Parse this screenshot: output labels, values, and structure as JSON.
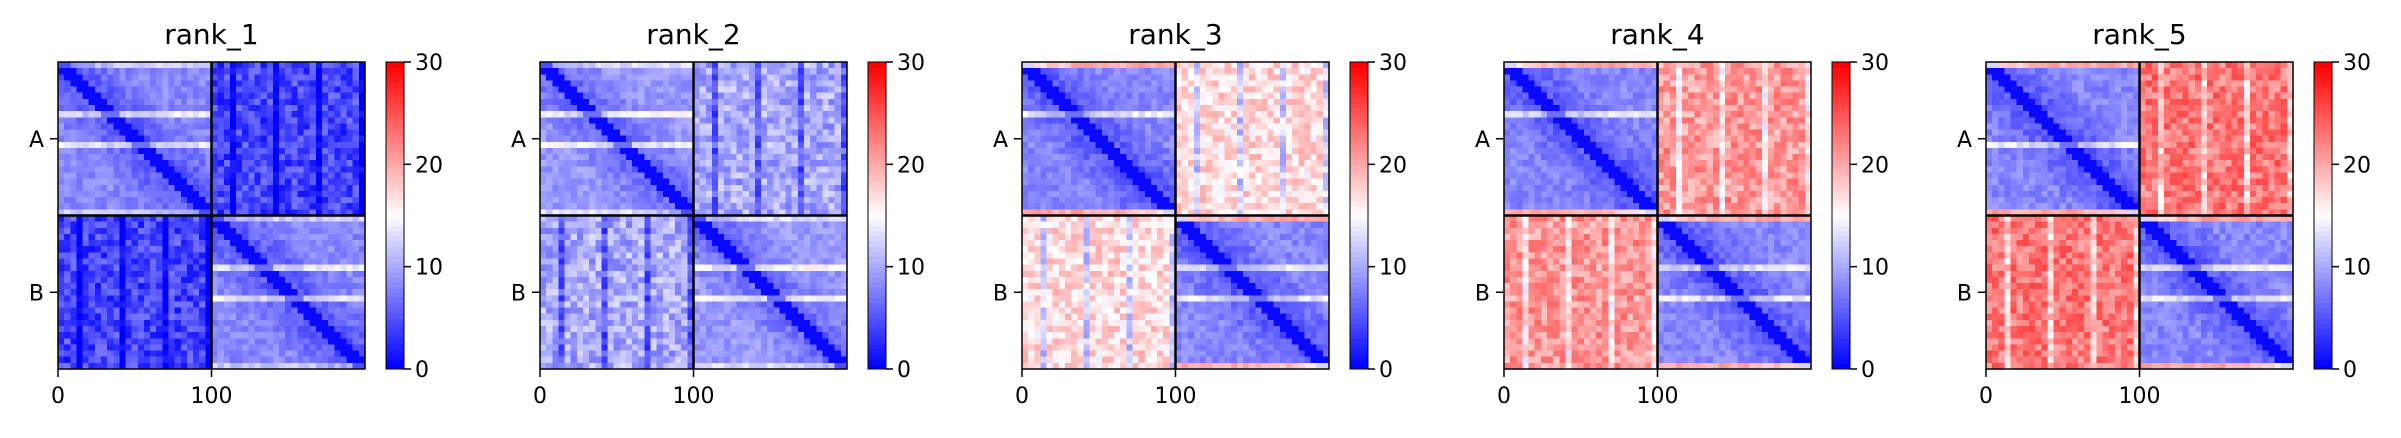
{
  "chart_data": [
    {
      "type": "heatmap",
      "title": "rank_1",
      "chains": [
        "A",
        "B"
      ],
      "chain_length": 100,
      "x_ticks": [
        0,
        100
      ],
      "colorbar": {
        "min": 0,
        "max": 30,
        "ticks": [
          0,
          10,
          20,
          30
        ],
        "colormap": "bwr"
      },
      "intra_chain_mean_error": 3,
      "inter_chain_mean_error": 4
    },
    {
      "type": "heatmap",
      "title": "rank_2",
      "chains": [
        "A",
        "B"
      ],
      "chain_length": 100,
      "x_ticks": [
        0,
        100
      ],
      "colorbar": {
        "min": 0,
        "max": 30,
        "ticks": [
          0,
          10,
          20,
          30
        ],
        "colormap": "bwr"
      },
      "intra_chain_mean_error": 4,
      "inter_chain_mean_error": 10
    },
    {
      "type": "heatmap",
      "title": "rank_3",
      "chains": [
        "A",
        "B"
      ],
      "chain_length": 100,
      "x_ticks": [
        0,
        100
      ],
      "colorbar": {
        "min": 0,
        "max": 30,
        "ticks": [
          0,
          10,
          20,
          30
        ],
        "colormap": "bwr"
      },
      "intra_chain_mean_error": 3,
      "inter_chain_mean_error": 17
    },
    {
      "type": "heatmap",
      "title": "rank_4",
      "chains": [
        "A",
        "B"
      ],
      "chain_length": 100,
      "x_ticks": [
        0,
        100
      ],
      "colorbar": {
        "min": 0,
        "max": 30,
        "ticks": [
          0,
          10,
          20,
          30
        ],
        "colormap": "bwr"
      },
      "intra_chain_mean_error": 3,
      "inter_chain_mean_error": 21
    },
    {
      "type": "heatmap",
      "title": "rank_5",
      "chains": [
        "A",
        "B"
      ],
      "chain_length": 100,
      "x_ticks": [
        0,
        100
      ],
      "colorbar": {
        "min": 0,
        "max": 30,
        "ticks": [
          0,
          10,
          20,
          30
        ],
        "colormap": "bwr"
      },
      "intra_chain_mean_error": 3,
      "inter_chain_mean_error": 23
    }
  ]
}
